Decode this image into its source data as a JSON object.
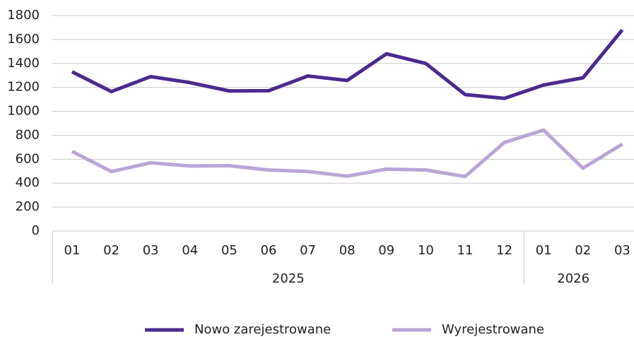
{
  "chart_data": {
    "type": "line",
    "categories": [
      "01",
      "02",
      "03",
      "04",
      "05",
      "06",
      "07",
      "08",
      "09",
      "10",
      "11",
      "12",
      "01",
      "02",
      "03"
    ],
    "category_groups": [
      {
        "label": "2025",
        "span": 12
      },
      {
        "label": "2026",
        "span": 3
      }
    ],
    "series": [
      {
        "name": "Nowo zarejestrowane",
        "color": "#4b2a8f",
        "values": [
          1330,
          1165,
          1290,
          1240,
          1170,
          1172,
          1295,
          1258,
          1480,
          1400,
          1140,
          1108,
          1220,
          1280,
          1680
        ]
      },
      {
        "name": "Wyrejestrowane",
        "color": "#b9a6d6",
        "values": [
          665,
          497,
          570,
          543,
          546,
          510,
          497,
          458,
          517,
          510,
          455,
          740,
          843,
          525,
          725
        ]
      }
    ],
    "ylim": [
      0,
      1800
    ],
    "yticks": [
      0,
      200,
      400,
      600,
      800,
      1000,
      1200,
      1400,
      1600,
      1800
    ],
    "grid": true,
    "legend": "bottom"
  }
}
